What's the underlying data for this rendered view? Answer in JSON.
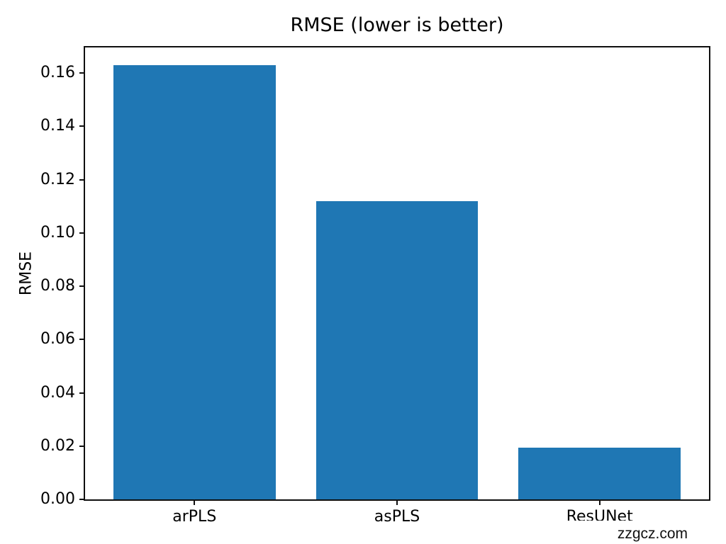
{
  "title": "RMSE (lower is better)",
  "watermark": "zzgcz.com",
  "chart_data": {
    "type": "bar",
    "title": "RMSE (lower is better)",
    "categories": [
      "arPLS",
      "asPLS",
      "ResUNet"
    ],
    "values": [
      0.163,
      0.112,
      0.0195
    ],
    "xlabel": "",
    "ylabel": "RMSE",
    "ylim": [
      0,
      0.1696
    ],
    "ytick_values": [
      0.0,
      0.02,
      0.04,
      0.06,
      0.08,
      0.1,
      0.12,
      0.14,
      0.16
    ],
    "ytick_labels": [
      "0.00",
      "0.02",
      "0.04",
      "0.06",
      "0.08",
      "0.10",
      "0.12",
      "0.14",
      "0.16"
    ],
    "bar_color": "#1f77b4",
    "axis_color": "#0f0f0f",
    "grid": false,
    "legend": false,
    "bar_width_fraction": 0.8
  }
}
